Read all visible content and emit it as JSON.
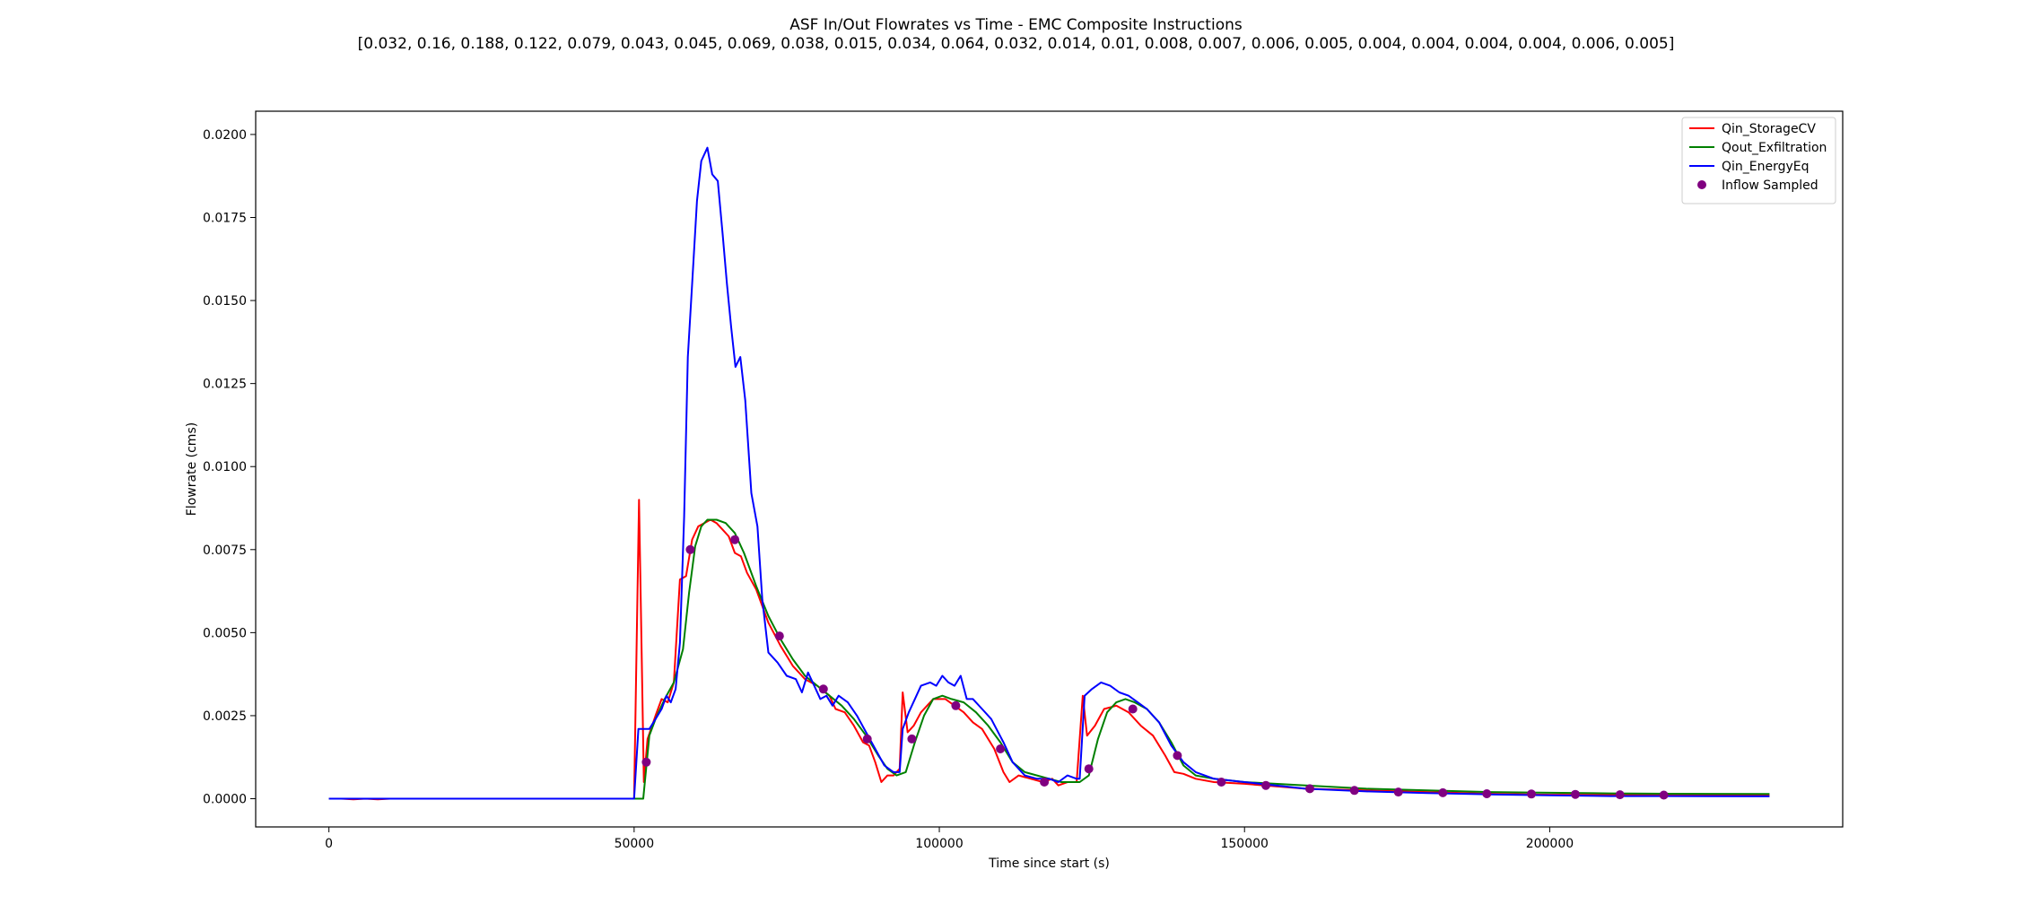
{
  "chart_data": {
    "type": "line",
    "title": "ASF In/Out Flowrates vs Time - EMC Composite Instructions",
    "subtitle": "[0.032, 0.16, 0.188, 0.122, 0.079, 0.043, 0.045, 0.069, 0.038, 0.015, 0.034, 0.064, 0.032, 0.014, 0.01, 0.008, 0.007, 0.006, 0.005, 0.004, 0.004, 0.004, 0.004, 0.006, 0.005]",
    "xlabel": "Time since start (s)",
    "ylabel": "Flowrate (cms)",
    "xlim": [
      -12000,
      248000
    ],
    "ylim": [
      -0.00085,
      0.0207
    ],
    "x_ticks": [
      0,
      50000,
      100000,
      150000,
      200000
    ],
    "x_tick_labels": [
      "0",
      "50000",
      "100000",
      "150000",
      "200000"
    ],
    "y_ticks": [
      0.0,
      0.0025,
      0.005,
      0.0075,
      0.01,
      0.0125,
      0.015,
      0.0175,
      0.02
    ],
    "y_tick_labels": [
      "0.0000",
      "0.0025",
      "0.0050",
      "0.0075",
      "0.0100",
      "0.0125",
      "0.0150",
      "0.0175",
      "0.0200"
    ],
    "grid": false,
    "legend_position": "top-right",
    "series": [
      {
        "name": "Qin_StorageCV",
        "color": "#ff0000",
        "kind": "line",
        "points": [
          [
            0,
            0
          ],
          [
            2000,
            0
          ],
          [
            4000,
            -2e-05
          ],
          [
            6000,
            0
          ],
          [
            8000,
            -2e-05
          ],
          [
            10000,
            0
          ],
          [
            20000,
            0
          ],
          [
            30000,
            0
          ],
          [
            40000,
            0
          ],
          [
            48000,
            0
          ],
          [
            50000,
            0
          ],
          [
            50800,
            0.009
          ],
          [
            51600,
            0.0005
          ],
          [
            52200,
            0.0018
          ],
          [
            53500,
            0.0025
          ],
          [
            54500,
            0.003
          ],
          [
            55500,
            0.0029
          ],
          [
            56500,
            0.0035
          ],
          [
            57500,
            0.0066
          ],
          [
            58500,
            0.0067
          ],
          [
            59500,
            0.0078
          ],
          [
            60500,
            0.0082
          ],
          [
            61500,
            0.0083
          ],
          [
            62500,
            0.0084
          ],
          [
            63500,
            0.0083
          ],
          [
            64500,
            0.0081
          ],
          [
            65500,
            0.0079
          ],
          [
            66500,
            0.0074
          ],
          [
            67500,
            0.0073
          ],
          [
            68500,
            0.0068
          ],
          [
            70000,
            0.0063
          ],
          [
            72000,
            0.0053
          ],
          [
            74000,
            0.0046
          ],
          [
            76000,
            0.004
          ],
          [
            78000,
            0.0036
          ],
          [
            80000,
            0.0034
          ],
          [
            82000,
            0.0031
          ],
          [
            83000,
            0.0027
          ],
          [
            84500,
            0.0026
          ],
          [
            86000,
            0.0022
          ],
          [
            87500,
            0.0017
          ],
          [
            88500,
            0.0016
          ],
          [
            89500,
            0.0011
          ],
          [
            90500,
            0.0005
          ],
          [
            91500,
            0.0007
          ],
          [
            92500,
            0.0007
          ],
          [
            93500,
            0.0009
          ],
          [
            94000,
            0.0032
          ],
          [
            94800,
            0.002
          ],
          [
            95800,
            0.0022
          ],
          [
            97000,
            0.0026
          ],
          [
            99000,
            0.003
          ],
          [
            101000,
            0.003
          ],
          [
            102500,
            0.0028
          ],
          [
            104000,
            0.0026
          ],
          [
            105500,
            0.0023
          ],
          [
            107000,
            0.0021
          ],
          [
            109000,
            0.0015
          ],
          [
            110500,
            0.0008
          ],
          [
            111500,
            0.0005
          ],
          [
            113000,
            0.0007
          ],
          [
            115000,
            0.0006
          ],
          [
            117000,
            0.0005
          ],
          [
            118500,
            0.0006
          ],
          [
            119500,
            0.0004
          ],
          [
            121000,
            0.0005
          ],
          [
            122500,
            0.0005
          ],
          [
            123500,
            0.0031
          ],
          [
            124200,
            0.0019
          ],
          [
            125500,
            0.0022
          ],
          [
            127000,
            0.0027
          ],
          [
            129000,
            0.0028
          ],
          [
            131000,
            0.0026
          ],
          [
            133000,
            0.0022
          ],
          [
            135000,
            0.0019
          ],
          [
            137000,
            0.0013
          ],
          [
            138500,
            0.0008
          ],
          [
            140000,
            0.00075
          ],
          [
            142000,
            0.0006
          ],
          [
            145000,
            0.0005
          ],
          [
            150000,
            0.00045
          ],
          [
            160000,
            0.0003
          ],
          [
            170000,
            0.00025
          ],
          [
            180000,
            0.0002
          ],
          [
            190000,
            0.00015
          ],
          [
            200000,
            0.00012
          ],
          [
            210000,
            0.00012
          ],
          [
            220000,
            0.00011
          ],
          [
            236000,
            0.0001
          ]
        ]
      },
      {
        "name": "Qout_Exfiltration",
        "color": "#008000",
        "kind": "line",
        "points": [
          [
            0,
            0
          ],
          [
            20000,
            0
          ],
          [
            40000,
            0
          ],
          [
            50000,
            0
          ],
          [
            51500,
            0
          ],
          [
            52500,
            0.0019
          ],
          [
            53500,
            0.0024
          ],
          [
            55000,
            0.003
          ],
          [
            56500,
            0.0035
          ],
          [
            58000,
            0.0045
          ],
          [
            59000,
            0.0062
          ],
          [
            60000,
            0.0076
          ],
          [
            61000,
            0.0082
          ],
          [
            62000,
            0.0084
          ],
          [
            63500,
            0.0084
          ],
          [
            65000,
            0.0083
          ],
          [
            66500,
            0.008
          ],
          [
            68000,
            0.0074
          ],
          [
            70000,
            0.0064
          ],
          [
            72000,
            0.0055
          ],
          [
            74000,
            0.0048
          ],
          [
            76000,
            0.0042
          ],
          [
            78000,
            0.0037
          ],
          [
            80000,
            0.0034
          ],
          [
            82000,
            0.0031
          ],
          [
            84000,
            0.0028
          ],
          [
            86000,
            0.0024
          ],
          [
            88000,
            0.0019
          ],
          [
            90000,
            0.0013
          ],
          [
            91500,
            0.0009
          ],
          [
            93000,
            0.0007
          ],
          [
            94500,
            0.0008
          ],
          [
            96000,
            0.0017
          ],
          [
            97500,
            0.0025
          ],
          [
            99000,
            0.003
          ],
          [
            100500,
            0.0031
          ],
          [
            102000,
            0.003
          ],
          [
            104000,
            0.0029
          ],
          [
            106000,
            0.0026
          ],
          [
            108000,
            0.0022
          ],
          [
            110000,
            0.0017
          ],
          [
            112000,
            0.0011
          ],
          [
            114000,
            0.0008
          ],
          [
            116000,
            0.0007
          ],
          [
            118000,
            0.0006
          ],
          [
            120000,
            0.0005
          ],
          [
            123000,
            0.0005
          ],
          [
            124500,
            0.0007
          ],
          [
            126000,
            0.0018
          ],
          [
            127500,
            0.0026
          ],
          [
            129000,
            0.0029
          ],
          [
            130500,
            0.003
          ],
          [
            132000,
            0.0029
          ],
          [
            134000,
            0.0027
          ],
          [
            136000,
            0.0023
          ],
          [
            138000,
            0.0017
          ],
          [
            140000,
            0.001
          ],
          [
            142000,
            0.0007
          ],
          [
            145000,
            0.0006
          ],
          [
            150000,
            0.0005
          ],
          [
            160000,
            0.0004
          ],
          [
            170000,
            0.0003
          ],
          [
            180000,
            0.00025
          ],
          [
            190000,
            0.0002
          ],
          [
            200000,
            0.00018
          ],
          [
            210000,
            0.00016
          ],
          [
            220000,
            0.00015
          ],
          [
            236000,
            0.00014
          ]
        ]
      },
      {
        "name": "Qin_EnergyEq",
        "color": "#0000ff",
        "kind": "line",
        "points": [
          [
            0,
            0
          ],
          [
            10000,
            0
          ],
          [
            20000,
            0
          ],
          [
            30000,
            0
          ],
          [
            40000,
            0
          ],
          [
            50000,
            0
          ],
          [
            50700,
            0.0021
          ],
          [
            52500,
            0.0021
          ],
          [
            53500,
            0.0024
          ],
          [
            54500,
            0.0027
          ],
          [
            55300,
            0.0031
          ],
          [
            56000,
            0.0029
          ],
          [
            56800,
            0.0033
          ],
          [
            57500,
            0.0047
          ],
          [
            58200,
            0.0085
          ],
          [
            58800,
            0.0133
          ],
          [
            59500,
            0.0155
          ],
          [
            60300,
            0.018
          ],
          [
            61000,
            0.0192
          ],
          [
            62000,
            0.0196
          ],
          [
            62800,
            0.0188
          ],
          [
            63700,
            0.0186
          ],
          [
            64500,
            0.017
          ],
          [
            65200,
            0.0155
          ],
          [
            65900,
            0.0142
          ],
          [
            66600,
            0.013
          ],
          [
            67400,
            0.0133
          ],
          [
            68200,
            0.012
          ],
          [
            69200,
            0.0092
          ],
          [
            70200,
            0.0082
          ],
          [
            71000,
            0.006
          ],
          [
            72000,
            0.0044
          ],
          [
            73500,
            0.0041
          ],
          [
            75000,
            0.0037
          ],
          [
            76500,
            0.0036
          ],
          [
            77500,
            0.0032
          ],
          [
            78500,
            0.0038
          ],
          [
            79500,
            0.0034
          ],
          [
            80500,
            0.003
          ],
          [
            81500,
            0.0031
          ],
          [
            82500,
            0.0028
          ],
          [
            83500,
            0.0031
          ],
          [
            85000,
            0.0029
          ],
          [
            86500,
            0.0025
          ],
          [
            88000,
            0.002
          ],
          [
            89500,
            0.0015
          ],
          [
            91000,
            0.001
          ],
          [
            92500,
            0.0008
          ],
          [
            93500,
            0.0008
          ],
          [
            94000,
            0.0021
          ],
          [
            95000,
            0.0026
          ],
          [
            96000,
            0.003
          ],
          [
            97000,
            0.0034
          ],
          [
            98500,
            0.0035
          ],
          [
            99500,
            0.0034
          ],
          [
            100500,
            0.0037
          ],
          [
            101500,
            0.0035
          ],
          [
            102500,
            0.0034
          ],
          [
            103500,
            0.0037
          ],
          [
            104500,
            0.003
          ],
          [
            105500,
            0.003
          ],
          [
            107000,
            0.0027
          ],
          [
            108500,
            0.0024
          ],
          [
            110500,
            0.0017
          ],
          [
            112000,
            0.0011
          ],
          [
            114000,
            0.0007
          ],
          [
            116000,
            0.0006
          ],
          [
            118000,
            0.0006
          ],
          [
            119500,
            0.0005
          ],
          [
            121000,
            0.0007
          ],
          [
            122500,
            0.0006
          ],
          [
            123000,
            0.0006
          ],
          [
            123800,
            0.0031
          ],
          [
            125000,
            0.0033
          ],
          [
            126500,
            0.0035
          ],
          [
            128000,
            0.0034
          ],
          [
            129500,
            0.0032
          ],
          [
            131000,
            0.0031
          ],
          [
            132500,
            0.0029
          ],
          [
            134000,
            0.0027
          ],
          [
            136000,
            0.0023
          ],
          [
            138000,
            0.0016
          ],
          [
            140000,
            0.0011
          ],
          [
            142000,
            0.0008
          ],
          [
            145000,
            0.0006
          ],
          [
            150000,
            0.0005
          ],
          [
            160000,
            0.0003
          ],
          [
            170000,
            0.00022
          ],
          [
            180000,
            0.00017
          ],
          [
            190000,
            0.00013
          ],
          [
            200000,
            0.0001
          ],
          [
            210000,
            8e-05
          ],
          [
            220000,
            8e-05
          ],
          [
            236000,
            7e-05
          ]
        ]
      },
      {
        "name": "Inflow Sampled",
        "color": "#800080",
        "kind": "scatter",
        "points": [
          [
            52000,
            0.0011
          ],
          [
            59200,
            0.0075
          ],
          [
            66500,
            0.0078
          ],
          [
            73800,
            0.0049
          ],
          [
            81000,
            0.0033
          ],
          [
            88200,
            0.0018
          ],
          [
            95500,
            0.0018
          ],
          [
            102700,
            0.0028
          ],
          [
            110000,
            0.0015
          ],
          [
            117200,
            0.0005
          ],
          [
            124500,
            0.0009
          ],
          [
            131700,
            0.0027
          ],
          [
            139000,
            0.0013
          ],
          [
            146200,
            0.0005
          ],
          [
            153500,
            0.0004
          ],
          [
            160700,
            0.0003
          ],
          [
            168000,
            0.00025
          ],
          [
            175200,
            0.0002
          ],
          [
            182500,
            0.00018
          ],
          [
            189700,
            0.00015
          ],
          [
            197000,
            0.00014
          ],
          [
            204200,
            0.00013
          ],
          [
            211500,
            0.00012
          ],
          [
            218700,
            0.00011
          ]
        ]
      }
    ]
  }
}
